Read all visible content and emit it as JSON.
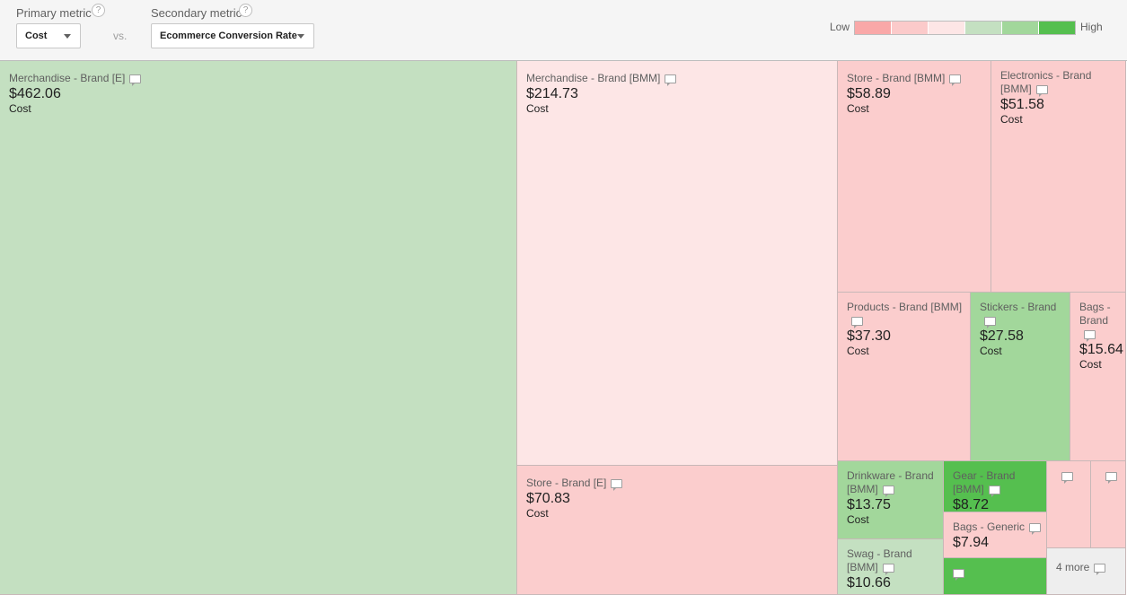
{
  "controls": {
    "primary_label": "Primary metric",
    "primary_value": "Cost",
    "secondary_label": "Secondary metric",
    "secondary_value": "Ecommerce Conversion Rate",
    "vs": "vs.",
    "help_glyph": "?"
  },
  "legend": {
    "low": "Low",
    "high": "High",
    "colors": [
      "#f9a8a8",
      "#fbcaca",
      "#fde6e6",
      "#c4e0c1",
      "#a2d79b",
      "#55bf4f"
    ]
  },
  "tiles": [
    {
      "name": "Merchandise - Brand [E]",
      "value": "$462.06",
      "metric": "Cost",
      "color": "#c4e0c1"
    },
    {
      "name": "Merchandise - Brand [BMM]",
      "value": "$214.73",
      "metric": "Cost",
      "color": "#fde6e6"
    },
    {
      "name": "Store - Brand [BMM]",
      "value": "$58.89",
      "metric": "Cost",
      "color": "#fbcdcd"
    },
    {
      "name": "Electronics - Brand [BMM]",
      "value": "$51.58",
      "metric": "Cost",
      "color": "#fbcdcd"
    },
    {
      "name": "Products - Brand [BMM]",
      "value": "$37.30",
      "metric": "Cost",
      "color": "#fbcdcd"
    },
    {
      "name": "Stickers - Brand",
      "value": "$27.58",
      "metric": "Cost",
      "color": "#a2d79b"
    },
    {
      "name": "Bags - Brand",
      "value": "$15.64",
      "metric": "Cost",
      "color": "#fbcdcd"
    },
    {
      "name": "Store - Brand [E]",
      "value": "$70.83",
      "metric": "Cost",
      "color": "#fbcdcd"
    },
    {
      "name": "Drinkware - Brand [BMM]",
      "value": "$13.75",
      "metric": "Cost",
      "color": "#a2d79b"
    },
    {
      "name": "Gear - Brand [BMM]",
      "value": "$8.72",
      "metric": "",
      "color": "#55bf4f"
    },
    {
      "name": "Bags - Generic",
      "value": "$7.94",
      "metric": "",
      "color": "#fbcdcd"
    },
    {
      "name": "Swag - Brand [BMM]",
      "value": "$10.66",
      "metric": "",
      "color": "#c4e0c1"
    },
    {
      "name": "",
      "value": "",
      "metric": "",
      "color": "#55bf4f"
    },
    {
      "name": "",
      "value": "",
      "metric": "",
      "color": "#fbcdcd"
    },
    {
      "name": "",
      "value": "",
      "metric": "",
      "color": "#fbcdcd"
    }
  ],
  "more": {
    "label": "4 more",
    "color": "#eeeeee"
  }
}
